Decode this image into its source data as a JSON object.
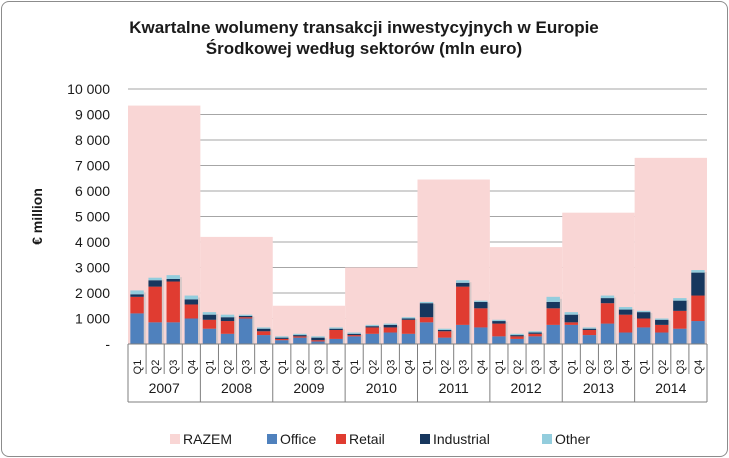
{
  "chart_data": {
    "type": "bar",
    "title": [
      "Kwartalne wolumeny transakcji inwestycyjnych w Europie",
      "Środkowej według sektorów (mln euro)"
    ],
    "ylabel": "€ million",
    "ylim": [
      0,
      10000
    ],
    "y_ticks": [
      "-",
      "1 000",
      "2 000",
      "3 000",
      "4 000",
      "5 000",
      "6 000",
      "7 000",
      "8 000",
      "9 000",
      "10 000"
    ],
    "grid": true,
    "legend_position": "bottom",
    "quarters": [
      "Q1",
      "Q2",
      "Q3",
      "Q4"
    ],
    "years": [
      "2007",
      "2008",
      "2009",
      "2010",
      "2011",
      "2012",
      "2013",
      "2014"
    ],
    "total": {
      "name": "RAZEM",
      "color": "#f9d6d5",
      "values": [
        9350,
        4200,
        1500,
        3000,
        6450,
        3800,
        5150,
        7300
      ]
    },
    "series": [
      {
        "name": "Office",
        "color": "#4f81bd",
        "values": [
          1200,
          850,
          850,
          1000,
          600,
          400,
          1000,
          350,
          150,
          250,
          100,
          200,
          300,
          400,
          450,
          400,
          850,
          250,
          750,
          650,
          300,
          200,
          300,
          750,
          750,
          350,
          800,
          450,
          650,
          450,
          600,
          900
        ]
      },
      {
        "name": "Retail",
        "color": "#e03c31",
        "values": [
          650,
          1400,
          1600,
          550,
          350,
          500,
          50,
          150,
          50,
          50,
          50,
          350,
          50,
          250,
          200,
          550,
          200,
          250,
          1500,
          750,
          500,
          100,
          100,
          650,
          100,
          200,
          800,
          700,
          350,
          300,
          700,
          1000
        ]
      },
      {
        "name": "Industrial",
        "color": "#17375e",
        "values": [
          100,
          250,
          100,
          200,
          200,
          150,
          50,
          100,
          50,
          50,
          100,
          50,
          50,
          50,
          100,
          50,
          550,
          50,
          150,
          250,
          100,
          50,
          50,
          250,
          300,
          50,
          200,
          200,
          250,
          200,
          400,
          900
        ]
      },
      {
        "name": "Other",
        "color": "#93cddd",
        "values": [
          150,
          100,
          150,
          150,
          100,
          100,
          50,
          50,
          50,
          50,
          50,
          50,
          50,
          50,
          50,
          50,
          50,
          50,
          100,
          50,
          50,
          50,
          50,
          200,
          100,
          50,
          100,
          100,
          50,
          50,
          100,
          100
        ]
      }
    ]
  }
}
